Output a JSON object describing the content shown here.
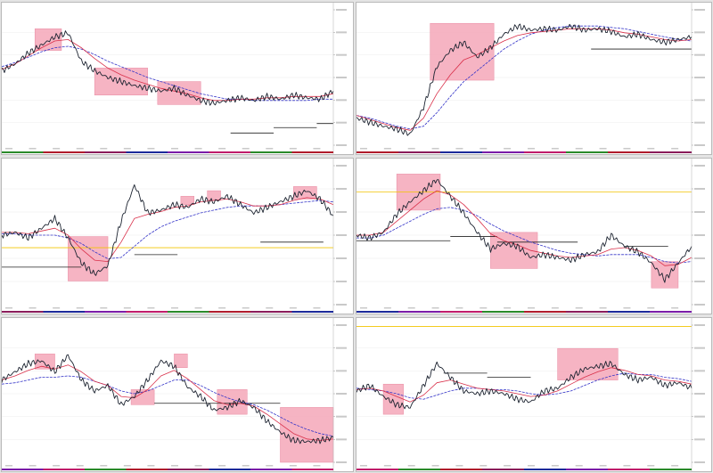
{
  "layout": {
    "columns": 2,
    "rows": 3
  },
  "colors": {
    "price": "#1c2330",
    "ma_fast": "#2a7a2a",
    "ma_mid": "#d9304a",
    "ma_slow": "#3434c8",
    "zone": "#f4a7b9",
    "flat_line": "#222222",
    "hline_yellow": "#f2c400",
    "axis_text": "#555555",
    "grid": "#ececec"
  },
  "panels": [
    {
      "id": "p1",
      "title": "",
      "chart_data": {
        "type": "line",
        "x": [
          0,
          0.04,
          0.08,
          0.12,
          0.16,
          0.2,
          0.24,
          0.28,
          0.32,
          0.36,
          0.4,
          0.44,
          0.48,
          0.52,
          0.56,
          0.6,
          0.64,
          0.68,
          0.72,
          0.76,
          0.8,
          0.84,
          0.88,
          0.92,
          0.96,
          1
        ],
        "ylim": [
          0,
          1
        ],
        "series": [
          {
            "values": [
              0.55,
              0.6,
              0.68,
              0.74,
              0.8,
              0.83,
              0.62,
              0.55,
              0.5,
              0.47,
              0.44,
              0.42,
              0.4,
              0.42,
              0.37,
              0.33,
              0.31,
              0.33,
              0.35,
              0.33,
              0.36,
              0.34,
              0.37,
              0.35,
              0.34,
              0.4
            ]
          },
          {
            "values": [
              0.56,
              0.6,
              0.66,
              0.72,
              0.77,
              0.78,
              0.72,
              0.64,
              0.57,
              0.52,
              0.48,
              0.45,
              0.42,
              0.4,
              0.38,
              0.35,
              0.33,
              0.33,
              0.34,
              0.34,
              0.35,
              0.35,
              0.36,
              0.36,
              0.36,
              0.38
            ]
          },
          {
            "values": [
              0.58,
              0.61,
              0.65,
              0.69,
              0.72,
              0.73,
              0.71,
              0.67,
              0.62,
              0.58,
              0.54,
              0.5,
              0.47,
              0.44,
              0.41,
              0.38,
              0.36,
              0.34,
              0.34,
              0.33,
              0.33,
              0.33,
              0.33,
              0.33,
              0.34,
              0.34
            ]
          }
        ],
        "zones": [
          {
            "x0": 0.1,
            "x1": 0.18,
            "y0": 0.7,
            "y1": 0.86
          },
          {
            "x0": 0.28,
            "x1": 0.44,
            "y0": 0.37,
            "y1": 0.57
          },
          {
            "x0": 0.47,
            "x1": 0.6,
            "y0": 0.3,
            "y1": 0.47
          }
        ],
        "flat_lines": [
          {
            "x0": 0.69,
            "x1": 0.82,
            "y": 0.09
          },
          {
            "x0": 0.82,
            "x1": 0.95,
            "y": 0.13
          },
          {
            "x0": 0.95,
            "x1": 1.0,
            "y": 0.16
          }
        ],
        "hlines": []
      }
    },
    {
      "id": "p2",
      "title": "",
      "chart_data": {
        "type": "line",
        "x": [
          0,
          0.04,
          0.08,
          0.12,
          0.16,
          0.2,
          0.24,
          0.28,
          0.32,
          0.36,
          0.4,
          0.44,
          0.48,
          0.52,
          0.56,
          0.6,
          0.64,
          0.68,
          0.72,
          0.76,
          0.8,
          0.84,
          0.88,
          0.92,
          0.96,
          1
        ],
        "ylim": [
          0,
          1
        ],
        "series": [
          {
            "values": [
              0.2,
              0.17,
              0.14,
              0.12,
              0.08,
              0.28,
              0.58,
              0.7,
              0.76,
              0.65,
              0.72,
              0.82,
              0.88,
              0.85,
              0.86,
              0.85,
              0.88,
              0.85,
              0.86,
              0.84,
              0.8,
              0.82,
              0.78,
              0.76,
              0.78,
              0.8
            ]
          },
          {
            "values": [
              0.22,
              0.19,
              0.16,
              0.13,
              0.11,
              0.2,
              0.38,
              0.52,
              0.63,
              0.67,
              0.72,
              0.77,
              0.81,
              0.83,
              0.84,
              0.85,
              0.86,
              0.86,
              0.86,
              0.85,
              0.83,
              0.82,
              0.8,
              0.78,
              0.77,
              0.78
            ]
          },
          {
            "values": [
              0.22,
              0.2,
              0.17,
              0.14,
              0.12,
              0.14,
              0.24,
              0.36,
              0.47,
              0.55,
              0.63,
              0.71,
              0.77,
              0.82,
              0.85,
              0.87,
              0.88,
              0.88,
              0.88,
              0.87,
              0.86,
              0.84,
              0.82,
              0.8,
              0.78,
              0.77
            ]
          }
        ],
        "zones": [
          {
            "x0": 0.22,
            "x1": 0.41,
            "y0": 0.48,
            "y1": 0.9
          }
        ],
        "flat_lines": [
          {
            "x0": 0.7,
            "x1": 1.0,
            "y": 0.71
          }
        ],
        "hlines": []
      }
    },
    {
      "id": "p3",
      "title": "",
      "chart_data": {
        "type": "line",
        "x": [
          0,
          0.04,
          0.08,
          0.12,
          0.16,
          0.2,
          0.24,
          0.28,
          0.32,
          0.36,
          0.4,
          0.44,
          0.48,
          0.52,
          0.56,
          0.6,
          0.64,
          0.68,
          0.72,
          0.76,
          0.8,
          0.84,
          0.88,
          0.92,
          0.96,
          1
        ],
        "ylim": [
          0,
          1
        ],
        "series": [
          {
            "values": [
              0.5,
              0.52,
              0.48,
              0.55,
              0.62,
              0.48,
              0.3,
              0.22,
              0.28,
              0.6,
              0.86,
              0.66,
              0.68,
              0.72,
              0.7,
              0.76,
              0.74,
              0.78,
              0.72,
              0.66,
              0.7,
              0.74,
              0.78,
              0.82,
              0.76,
              0.64
            ]
          },
          {
            "values": [
              0.52,
              0.52,
              0.51,
              0.53,
              0.55,
              0.5,
              0.4,
              0.32,
              0.31,
              0.45,
              0.62,
              0.65,
              0.67,
              0.7,
              0.71,
              0.74,
              0.75,
              0.76,
              0.74,
              0.71,
              0.71,
              0.72,
              0.75,
              0.77,
              0.76,
              0.72
            ]
          },
          {
            "values": [
              0.51,
              0.51,
              0.5,
              0.5,
              0.5,
              0.48,
              0.44,
              0.38,
              0.33,
              0.34,
              0.42,
              0.5,
              0.56,
              0.6,
              0.63,
              0.66,
              0.68,
              0.7,
              0.71,
              0.71,
              0.71,
              0.72,
              0.73,
              0.74,
              0.75,
              0.74
            ]
          }
        ],
        "zones": [
          {
            "x0": 0.2,
            "x1": 0.32,
            "y0": 0.17,
            "y1": 0.49
          },
          {
            "x0": 0.54,
            "x1": 0.58,
            "y0": 0.72,
            "y1": 0.78
          },
          {
            "x0": 0.62,
            "x1": 0.66,
            "y0": 0.75,
            "y1": 0.82
          },
          {
            "x0": 0.88,
            "x1": 0.95,
            "y0": 0.76,
            "y1": 0.85
          }
        ],
        "flat_lines": [
          {
            "x0": 0.0,
            "x1": 0.24,
            "y": 0.27
          },
          {
            "x0": 0.4,
            "x1": 0.53,
            "y": 0.36
          },
          {
            "x0": 0.78,
            "x1": 0.97,
            "y": 0.45
          }
        ],
        "hlines": [
          {
            "y": 0.41,
            "color": "#f2c400"
          }
        ]
      }
    },
    {
      "id": "p4",
      "title": "",
      "chart_data": {
        "type": "line",
        "x": [
          0,
          0.04,
          0.08,
          0.12,
          0.16,
          0.2,
          0.24,
          0.28,
          0.32,
          0.36,
          0.4,
          0.44,
          0.48,
          0.52,
          0.56,
          0.6,
          0.64,
          0.68,
          0.72,
          0.76,
          0.8,
          0.84,
          0.88,
          0.92,
          0.96,
          1
        ],
        "ylim": [
          0,
          1
        ],
        "series": [
          {
            "values": [
              0.5,
              0.48,
              0.52,
              0.65,
              0.74,
              0.82,
              0.9,
              0.78,
              0.66,
              0.52,
              0.4,
              0.44,
              0.42,
              0.34,
              0.36,
              0.34,
              0.32,
              0.36,
              0.38,
              0.5,
              0.42,
              0.38,
              0.3,
              0.18,
              0.3,
              0.42
            ]
          },
          {
            "values": [
              0.5,
              0.5,
              0.52,
              0.6,
              0.68,
              0.76,
              0.82,
              0.79,
              0.72,
              0.62,
              0.51,
              0.46,
              0.43,
              0.39,
              0.37,
              0.35,
              0.34,
              0.35,
              0.36,
              0.4,
              0.41,
              0.39,
              0.35,
              0.28,
              0.29,
              0.34
            ]
          },
          {
            "values": [
              0.48,
              0.48,
              0.5,
              0.55,
              0.6,
              0.65,
              0.69,
              0.7,
              0.68,
              0.64,
              0.58,
              0.53,
              0.49,
              0.45,
              0.42,
              0.39,
              0.37,
              0.36,
              0.35,
              0.36,
              0.36,
              0.36,
              0.34,
              0.31,
              0.3,
              0.31
            ]
          }
        ],
        "zones": [
          {
            "x0": 0.12,
            "x1": 0.25,
            "y0": 0.68,
            "y1": 0.94
          },
          {
            "x0": 0.4,
            "x1": 0.54,
            "y0": 0.26,
            "y1": 0.52
          },
          {
            "x0": 0.88,
            "x1": 0.96,
            "y0": 0.12,
            "y1": 0.31
          }
        ],
        "flat_lines": [
          {
            "x0": 0.0,
            "x1": 0.28,
            "y": 0.46
          },
          {
            "x0": 0.28,
            "x1": 0.42,
            "y": 0.49
          },
          {
            "x0": 0.42,
            "x1": 0.66,
            "y": 0.45
          },
          {
            "x0": 0.8,
            "x1": 0.93,
            "y": 0.42
          }
        ],
        "hlines": [
          {
            "y": 0.81,
            "color": "#f2c400"
          }
        ]
      }
    },
    {
      "id": "p5",
      "title": "",
      "chart_data": {
        "type": "line",
        "x": [
          0,
          0.04,
          0.08,
          0.12,
          0.16,
          0.2,
          0.24,
          0.28,
          0.32,
          0.36,
          0.4,
          0.44,
          0.48,
          0.52,
          0.56,
          0.6,
          0.64,
          0.68,
          0.72,
          0.76,
          0.8,
          0.84,
          0.88,
          0.92,
          0.96,
          1
        ],
        "ylim": [
          0,
          1
        ],
        "series": [
          {
            "values": [
              0.6,
              0.66,
              0.72,
              0.74,
              0.66,
              0.78,
              0.6,
              0.52,
              0.56,
              0.42,
              0.48,
              0.6,
              0.74,
              0.7,
              0.55,
              0.48,
              0.38,
              0.4,
              0.45,
              0.4,
              0.3,
              0.22,
              0.16,
              0.15,
              0.16,
              0.18
            ]
          },
          {
            "values": [
              0.6,
              0.63,
              0.67,
              0.7,
              0.68,
              0.71,
              0.66,
              0.59,
              0.56,
              0.48,
              0.47,
              0.53,
              0.63,
              0.67,
              0.61,
              0.53,
              0.45,
              0.42,
              0.43,
              0.41,
              0.35,
              0.28,
              0.21,
              0.17,
              0.16,
              0.17
            ]
          },
          {
            "values": [
              0.57,
              0.58,
              0.6,
              0.62,
              0.62,
              0.63,
              0.62,
              0.59,
              0.56,
              0.52,
              0.5,
              0.52,
              0.56,
              0.6,
              0.6,
              0.56,
              0.51,
              0.47,
              0.44,
              0.42,
              0.38,
              0.33,
              0.28,
              0.24,
              0.21,
              0.19
            ]
          }
        ],
        "zones": [
          {
            "x0": 0.1,
            "x1": 0.16,
            "y0": 0.68,
            "y1": 0.79
          },
          {
            "x0": 0.39,
            "x1": 0.46,
            "y0": 0.42,
            "y1": 0.53
          },
          {
            "x0": 0.52,
            "x1": 0.56,
            "y0": 0.69,
            "y1": 0.79
          },
          {
            "x0": 0.65,
            "x1": 0.74,
            "y0": 0.35,
            "y1": 0.53
          },
          {
            "x0": 0.84,
            "x1": 1.0,
            "y0": 0.0,
            "y1": 0.4
          }
        ],
        "flat_lines": [
          {
            "x0": 0.46,
            "x1": 0.84,
            "y": 0.43
          }
        ],
        "hlines": []
      }
    },
    {
      "id": "p6",
      "title": "",
      "chart_data": {
        "type": "line",
        "x": [
          0,
          0.04,
          0.08,
          0.12,
          0.16,
          0.2,
          0.24,
          0.28,
          0.32,
          0.36,
          0.4,
          0.44,
          0.48,
          0.52,
          0.56,
          0.6,
          0.64,
          0.68,
          0.72,
          0.76,
          0.8,
          0.84,
          0.88,
          0.92,
          0.96,
          1
        ],
        "ylim": [
          0,
          1
        ],
        "series": [
          {
            "values": [
              0.52,
              0.56,
              0.48,
              0.42,
              0.4,
              0.56,
              0.72,
              0.62,
              0.52,
              0.5,
              0.52,
              0.5,
              0.46,
              0.44,
              0.52,
              0.54,
              0.62,
              0.68,
              0.7,
              0.72,
              0.64,
              0.6,
              0.62,
              0.56,
              0.58,
              0.54
            ]
          },
          {
            "values": [
              0.53,
              0.54,
              0.52,
              0.48,
              0.44,
              0.49,
              0.58,
              0.6,
              0.57,
              0.54,
              0.53,
              0.52,
              0.5,
              0.48,
              0.49,
              0.52,
              0.57,
              0.62,
              0.66,
              0.69,
              0.67,
              0.64,
              0.63,
              0.6,
              0.59,
              0.57
            ]
          },
          {
            "values": [
              0.54,
              0.53,
              0.52,
              0.5,
              0.47,
              0.46,
              0.49,
              0.52,
              0.54,
              0.54,
              0.53,
              0.53,
              0.52,
              0.5,
              0.49,
              0.5,
              0.52,
              0.56,
              0.6,
              0.63,
              0.65,
              0.64,
              0.64,
              0.62,
              0.61,
              0.59
            ]
          }
        ],
        "zones": [
          {
            "x0": 0.08,
            "x1": 0.14,
            "y0": 0.35,
            "y1": 0.57
          },
          {
            "x0": 0.6,
            "x1": 0.78,
            "y0": 0.6,
            "y1": 0.83
          }
        ],
        "flat_lines": [
          {
            "x0": 0.26,
            "x1": 0.39,
            "y": 0.65
          },
          {
            "x0": 0.39,
            "x1": 0.52,
            "y": 0.62
          }
        ],
        "hlines": [
          {
            "y": 0.99,
            "color": "#f2c400"
          }
        ]
      }
    }
  ]
}
